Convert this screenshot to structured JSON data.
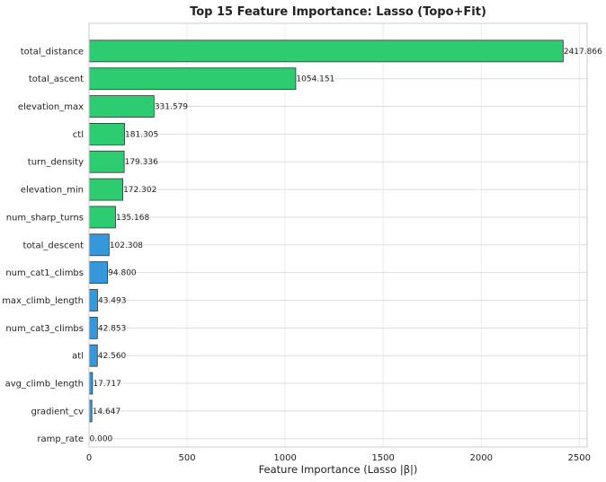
{
  "chart_data": {
    "type": "bar",
    "orientation": "horizontal",
    "title": "Top 15 Feature Importance: Lasso (Topo+Fit)",
    "xlabel": "Feature Importance (Lasso |β|)",
    "ylabel": "",
    "xlim": [
      0,
      2540
    ],
    "xticks": [
      0,
      500,
      1000,
      1500,
      2000,
      2500
    ],
    "grid": true,
    "categories": [
      "total_distance",
      "total_ascent",
      "elevation_max",
      "ctl",
      "turn_density",
      "elevation_min",
      "num_sharp_turns",
      "total_descent",
      "num_cat1_climbs",
      "max_climb_length",
      "num_cat3_climbs",
      "atl",
      "avg_climb_length",
      "gradient_cv",
      "ramp_rate"
    ],
    "values": [
      2417.866,
      1054.151,
      331.579,
      181.305,
      179.336,
      172.302,
      135.168,
      102.308,
      94.8,
      43.493,
      42.853,
      42.56,
      17.717,
      14.647,
      0.0
    ],
    "value_labels": [
      "2417.866",
      "1054.151",
      "331.579",
      "181.305",
      "179.336",
      "172.302",
      "135.168",
      "102.308",
      "94.800",
      "43.493",
      "42.853",
      "42.560",
      "17.717",
      "14.647",
      "0.000"
    ],
    "bar_colors": [
      "#2ecc71",
      "#2ecc71",
      "#2ecc71",
      "#2ecc71",
      "#2ecc71",
      "#2ecc71",
      "#2ecc71",
      "#3498db",
      "#3498db",
      "#3498db",
      "#3498db",
      "#3498db",
      "#3498db",
      "#3498db",
      "#3498db"
    ],
    "edge_color": "#333333",
    "grid_color": "#dddddd"
  }
}
